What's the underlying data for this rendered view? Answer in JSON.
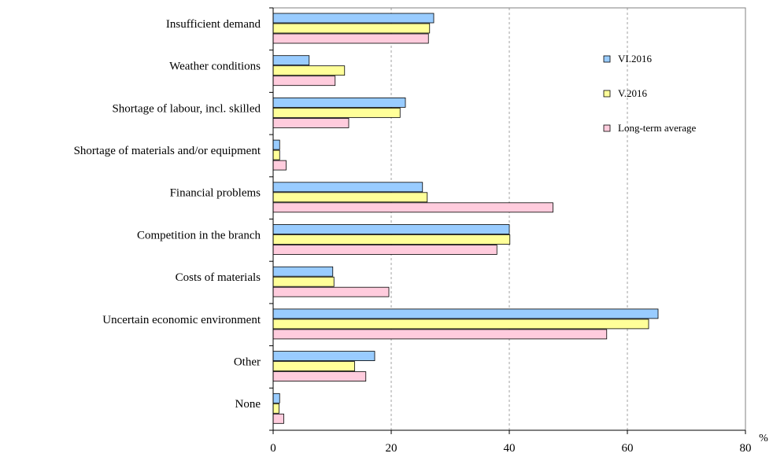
{
  "chart_data": {
    "type": "bar",
    "orientation": "horizontal",
    "categories": [
      "Insufficient demand",
      "Weather conditions",
      "Shortage of labour, incl. skilled",
      "Shortage of materials and/or equipment",
      "Financial problems",
      "Competition in the branch",
      "Costs of materials",
      "Uncertain economic environment",
      "Other",
      "None"
    ],
    "series": [
      {
        "name": "VI.2016",
        "color": "#99ccff",
        "values": [
          27.2,
          6.1,
          22.4,
          1.1,
          25.3,
          40.0,
          10.1,
          65.2,
          17.2,
          1.1
        ]
      },
      {
        "name": "V.2016",
        "color": "#ffff99",
        "values": [
          26.5,
          12.1,
          21.5,
          1.1,
          26.1,
          40.1,
          10.3,
          63.6,
          13.8,
          1.0
        ]
      },
      {
        "name": "Long-term average",
        "color": "#ffccdd",
        "values": [
          26.3,
          10.5,
          12.8,
          2.2,
          47.4,
          37.9,
          19.6,
          56.5,
          15.7,
          1.8
        ]
      }
    ],
    "xlim": [
      0,
      80
    ],
    "xticks": [
      "0",
      "20",
      "40",
      "60",
      "80"
    ],
    "unit_label": "%",
    "grid": "vertical dashed",
    "legend_position": "right, inside plot"
  }
}
